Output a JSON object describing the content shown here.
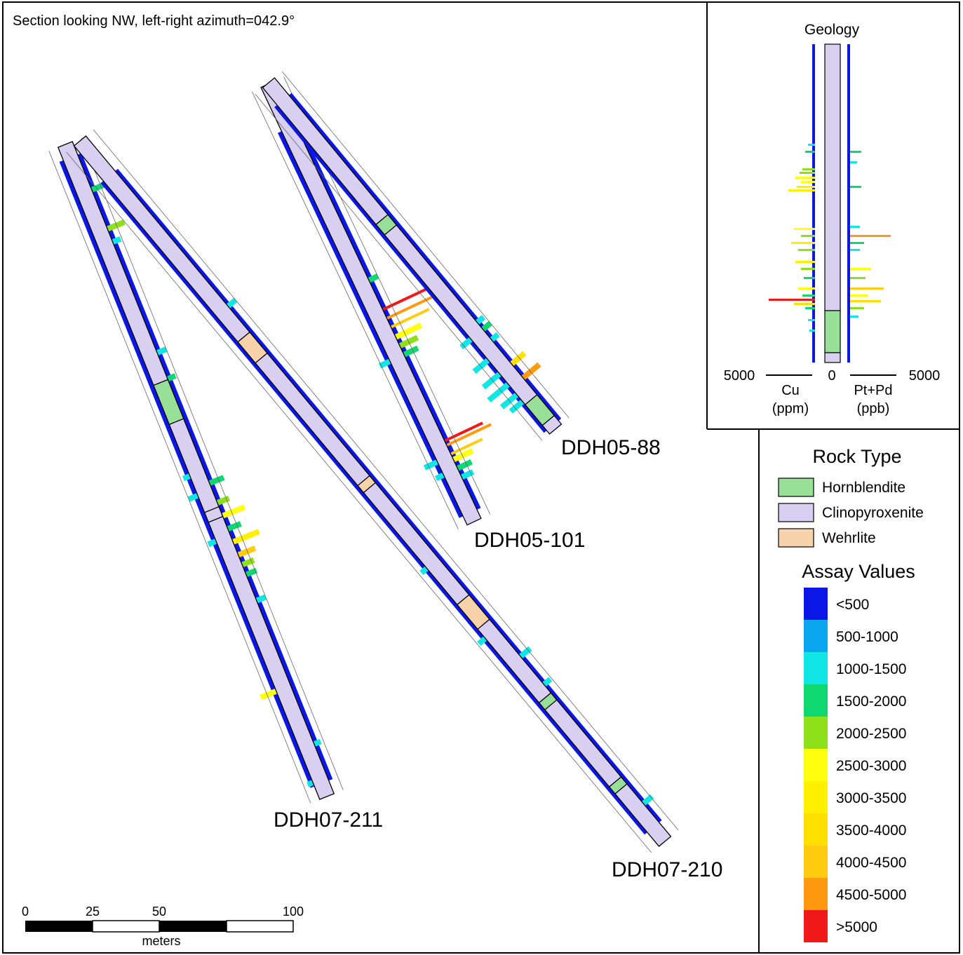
{
  "section_label": "Section looking NW, left-right azimuth=042.9°",
  "drillholes": [
    {
      "name": "DDH07-211"
    },
    {
      "name": "DDH07-210"
    },
    {
      "name": "DDH05-101"
    },
    {
      "name": "DDH05-88"
    }
  ],
  "inset": {
    "title": "Geology",
    "left_axis": {
      "max": "5000",
      "zero": "0",
      "element": "Cu",
      "unit": "(ppm)"
    },
    "right_axis": {
      "max": "5000",
      "element": "Pt+Pd",
      "unit": "(ppb)"
    }
  },
  "legend": {
    "rock_title": "Rock Type",
    "rock_types": [
      {
        "label": "Hornblendite",
        "color": "#98e098"
      },
      {
        "label": "Clinopyroxenite",
        "color": "#d9cff0"
      },
      {
        "label": "Wehrlite",
        "color": "#f8d2aa"
      }
    ],
    "assay_title": "Assay Values",
    "assay_classes": [
      {
        "label": "<500",
        "color": "#0a17e6"
      },
      {
        "label": "500-1000",
        "color": "#0aa7f0"
      },
      {
        "label": "1000-1500",
        "color": "#10e6e6"
      },
      {
        "label": "1500-2000",
        "color": "#10d870"
      },
      {
        "label": "2000-2500",
        "color": "#8ee01a"
      },
      {
        "label": "2500-3000",
        "color": "#ffff10"
      },
      {
        "label": "3000-3500",
        "color": "#fff000"
      },
      {
        "label": "3500-4000",
        "color": "#ffe000"
      },
      {
        "label": "4000-4500",
        "color": "#ffcc10"
      },
      {
        "label": "4500-5000",
        "color": "#ff9a10"
      },
      {
        "label": ">5000",
        "color": "#f01818"
      }
    ]
  },
  "scale_bar": {
    "ticks": [
      "0",
      "25",
      "50",
      "100"
    ],
    "unit": "meters"
  }
}
